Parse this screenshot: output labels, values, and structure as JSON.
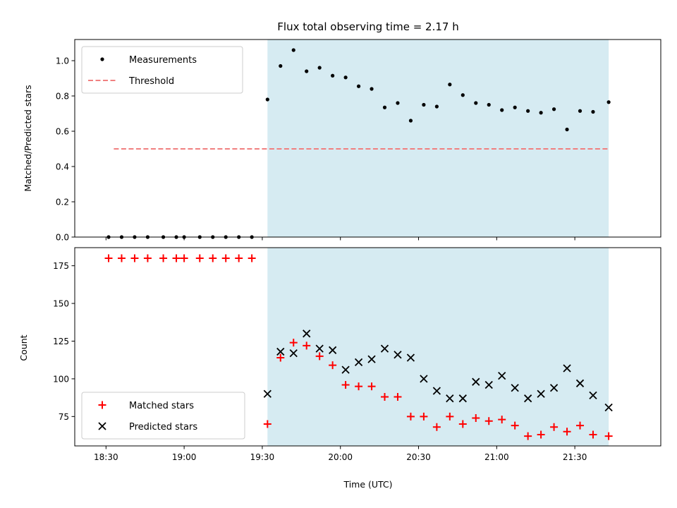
{
  "chart_data": [
    {
      "type": "scatter",
      "panel": "top",
      "title": "Flux total observing time = 2.17 h",
      "xlabel": "",
      "ylabel": "Matched/Predicted stars",
      "ylim": [
        0,
        1.12
      ],
      "yticks": [
        0.0,
        0.2,
        0.4,
        0.6,
        0.8,
        1.0
      ],
      "ytick_labels": [
        "0.0",
        "0.2",
        "0.4",
        "0.6",
        "0.8",
        "1.0"
      ],
      "xlim": [
        "18:18",
        "22:03"
      ],
      "shaded_region": {
        "start": "19:32",
        "end": "21:43",
        "color": "#add8e6"
      },
      "legend": {
        "position": "top-left"
      },
      "series": [
        {
          "name": "Measurements",
          "kind": "point",
          "color": "#000000",
          "x": [
            "18:31",
            "18:36",
            "18:41",
            "18:46",
            "18:52",
            "18:57",
            "19:00",
            "19:06",
            "19:11",
            "19:16",
            "19:21",
            "19:26",
            "19:32",
            "19:37",
            "19:42",
            "19:47",
            "19:52",
            "19:57",
            "20:02",
            "20:07",
            "20:12",
            "20:17",
            "20:22",
            "20:27",
            "20:32",
            "20:37",
            "20:42",
            "20:47",
            "20:52",
            "20:57",
            "21:02",
            "21:07",
            "21:12",
            "21:17",
            "21:22",
            "21:27",
            "21:32",
            "21:37",
            "21:43"
          ],
          "y": [
            0,
            0,
            0,
            0,
            0,
            0,
            0,
            0,
            0,
            0,
            0,
            0,
            0.78,
            0.97,
            1.06,
            0.94,
            0.96,
            0.915,
            0.905,
            0.855,
            0.84,
            0.735,
            0.76,
            0.66,
            0.75,
            0.74,
            0.865,
            0.805,
            0.76,
            0.75,
            0.72,
            0.735,
            0.715,
            0.705,
            0.725,
            0.61,
            0.715,
            0.71,
            0.765
          ]
        },
        {
          "name": "Threshold",
          "kind": "dashed-line",
          "color": "#f08080",
          "x": [
            "18:33",
            "21:43"
          ],
          "y": [
            0.5,
            0.5
          ]
        }
      ]
    },
    {
      "type": "scatter",
      "panel": "bottom",
      "title": "",
      "xlabel": "Time (UTC)",
      "ylabel": "Count",
      "ylim": [
        55.5,
        187
      ],
      "yticks": [
        75,
        100,
        125,
        150,
        175
      ],
      "ytick_labels": [
        "75",
        "100",
        "125",
        "150",
        "175"
      ],
      "xlim": [
        "18:18",
        "22:03"
      ],
      "xticks": [
        "18:30",
        "19:00",
        "19:30",
        "20:00",
        "20:30",
        "21:00",
        "21:30"
      ],
      "xtick_labels": [
        "18:30",
        "19:00",
        "19:30",
        "20:00",
        "20:30",
        "21:00",
        "21:30"
      ],
      "shaded_region": {
        "start": "19:32",
        "end": "21:43",
        "color": "#add8e6"
      },
      "legend": {
        "position": "bottom-left"
      },
      "series": [
        {
          "name": "Matched stars",
          "marker": "plus",
          "color": "#ff0000",
          "x": [
            "18:31",
            "18:36",
            "18:41",
            "18:46",
            "18:52",
            "18:57",
            "19:00",
            "19:06",
            "19:11",
            "19:16",
            "19:21",
            "19:26",
            "19:32",
            "19:37",
            "19:42",
            "19:47",
            "19:52",
            "19:57",
            "20:02",
            "20:07",
            "20:12",
            "20:17",
            "20:22",
            "20:27",
            "20:32",
            "20:37",
            "20:42",
            "20:47",
            "20:52",
            "20:57",
            "21:02",
            "21:07",
            "21:12",
            "21:17",
            "21:22",
            "21:27",
            "21:32",
            "21:37",
            "21:43"
          ],
          "y": [
            180,
            180,
            180,
            180,
            180,
            180,
            180,
            180,
            180,
            180,
            180,
            180,
            70,
            114,
            124,
            122,
            115,
            109,
            96,
            95,
            95,
            88,
            88,
            75,
            75,
            68,
            75,
            70,
            74,
            72,
            73,
            69,
            62,
            63,
            68,
            65,
            69,
            63,
            62
          ]
        },
        {
          "name": "Predicted stars",
          "marker": "x",
          "color": "#000000",
          "x": [
            "19:32",
            "19:37",
            "19:42",
            "19:47",
            "19:52",
            "19:57",
            "20:02",
            "20:07",
            "20:12",
            "20:17",
            "20:22",
            "20:27",
            "20:32",
            "20:37",
            "20:42",
            "20:47",
            "20:52",
            "20:57",
            "21:02",
            "21:07",
            "21:12",
            "21:17",
            "21:22",
            "21:27",
            "21:32",
            "21:37",
            "21:43"
          ],
          "y": [
            90,
            118,
            117,
            130,
            120,
            119,
            106,
            111,
            113,
            120,
            116,
            114,
            100,
            92,
            87,
            87,
            98,
            96,
            102,
            94,
            87,
            90,
            94,
            107,
            97,
            89,
            81
          ]
        }
      ]
    }
  ]
}
